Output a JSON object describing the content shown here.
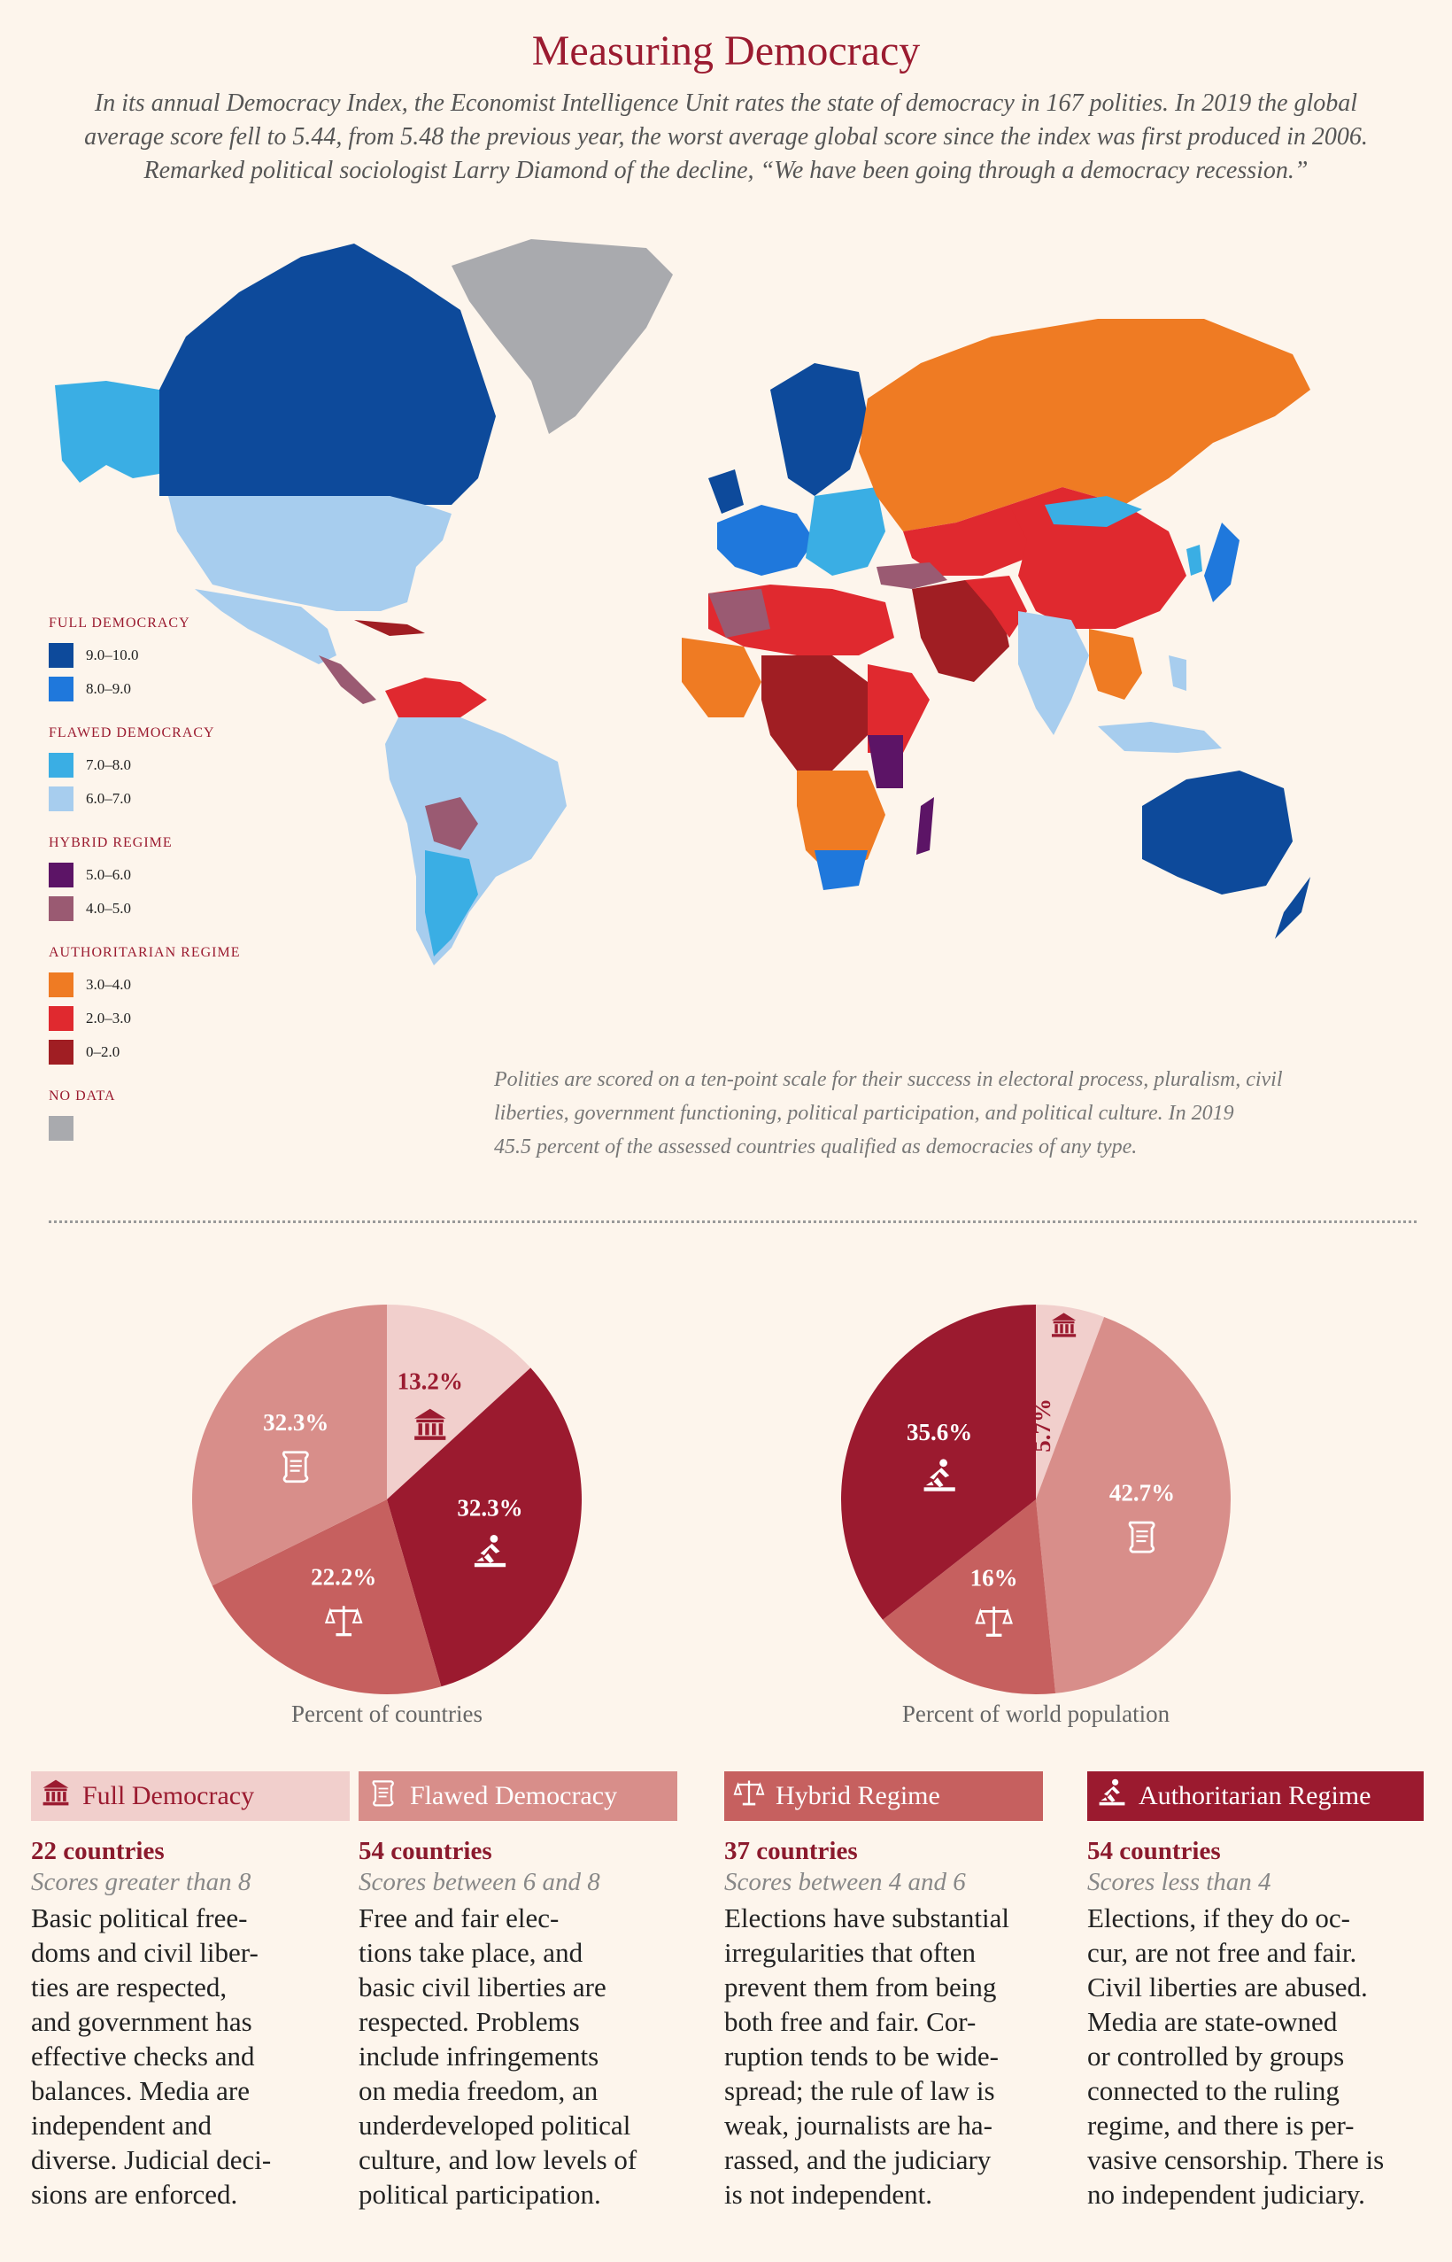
{
  "title": "Measuring Democracy",
  "intro": [
    "In its annual Democracy Index, the Economist Intelligence Unit rates the state of democracy in 167 polities. In 2019 the global",
    "average score fell to 5.44, from 5.48 the previous year, the worst average global score since the index was first produced in 2006.",
    "Remarked political sociologist Larry Diamond of the decline, “We have been going through a democracy recession.”"
  ],
  "legend": [
    {
      "heading": "FULL DEMOCRACY",
      "items": [
        {
          "label": "9.0–10.0",
          "color": "#0d4a9b"
        },
        {
          "label": "8.0–9.0",
          "color": "#1f78dc"
        }
      ]
    },
    {
      "heading": "FLAWED DEMOCRACY",
      "items": [
        {
          "label": "7.0–8.0",
          "color": "#3aaee4"
        },
        {
          "label": "6.0–7.0",
          "color": "#a7cdee"
        }
      ]
    },
    {
      "heading": "HYBRID REGIME",
      "items": [
        {
          "label": "5.0–6.0",
          "color": "#5c1466"
        },
        {
          "label": "4.0–5.0",
          "color": "#9a5a72"
        }
      ]
    },
    {
      "heading": "AUTHORITARIAN REGIME",
      "items": [
        {
          "label": "3.0–4.0",
          "color": "#ef7b23"
        },
        {
          "label": "2.0–3.0",
          "color": "#e0292f"
        },
        {
          "label": "0–2.0",
          "color": "#a01e23"
        }
      ]
    },
    {
      "heading": "NO DATA",
      "items": [
        {
          "label": "",
          "color": "#a9aaae"
        }
      ]
    }
  ],
  "note": [
    "Polities are scored on a ten-point scale for their success in electoral process, pluralism, civil",
    "liberties, government functioning, political participation, and political culture. In 2019",
    "45.5 percent of the assessed countries qualified as democracies of any type."
  ],
  "colors": {
    "full": "#f1cfcc",
    "flawed": "#d88e8a",
    "hybrid": "#c6605f",
    "authoritarian": "#9b1a2f",
    "accent": "#9b1b30"
  },
  "chart_data": [
    {
      "type": "pie",
      "title": "Percent of countries",
      "labels": [
        "Full Democracy",
        "Authoritarian Regime",
        "Hybrid Regime",
        "Flawed Democracy"
      ],
      "values": [
        13.2,
        32.3,
        22.2,
        32.3
      ],
      "value_labels": [
        "13.2%",
        "32.3%",
        "22.2%",
        "32.3%"
      ]
    },
    {
      "type": "pie",
      "title": "Percent of world population",
      "labels": [
        "Full Democracy",
        "Flawed Democracy",
        "Hybrid Regime",
        "Authoritarian Regime"
      ],
      "values": [
        5.7,
        42.7,
        16,
        35.6
      ],
      "value_labels": [
        "5.7%",
        "42.7%",
        "16%",
        "35.6%"
      ]
    }
  ],
  "categories": [
    {
      "name": "Full Democracy",
      "count": "22 countries",
      "range": "Scores greater than 8",
      "desc": [
        "Basic political free-",
        "doms and civil liber-",
        "ties are respected,",
        "and government has",
        "effective checks and",
        "balances. Media are",
        "independent and",
        "diverse. Judicial deci-",
        "sions are enforced."
      ]
    },
    {
      "name": "Flawed Democracy",
      "count": "54 countries",
      "range": "Scores between 6 and 8",
      "desc": [
        "Free and fair elec-",
        "tions take place, and",
        "basic civil liberties are",
        "respected. Problems",
        "include infringements",
        "on media freedom, an",
        "underdeveloped political",
        "culture, and low levels of",
        "political participation."
      ]
    },
    {
      "name": "Hybrid Regime",
      "count": "37 countries",
      "range": "Scores between 4 and 6",
      "desc": [
        "Elections have substantial",
        "irregularities that often",
        "prevent them from being",
        "both free and fair. Cor-",
        "ruption tends to be wide-",
        "spread; the rule of law is",
        "weak, journalists are ha-",
        "rassed, and the judiciary",
        "is not independent."
      ]
    },
    {
      "name": "Authoritarian Regime",
      "count": "54 countries",
      "range": "Scores less than 4",
      "desc": [
        "Elections, if they do oc-",
        "cur, are not free and fair.",
        "Civil liberties are abused.",
        "Media are state-owned",
        "or controlled by groups",
        "connected to the ruling",
        "regime, and there is per-",
        "vasive censorship. There is",
        "no independent judiciary."
      ]
    }
  ]
}
